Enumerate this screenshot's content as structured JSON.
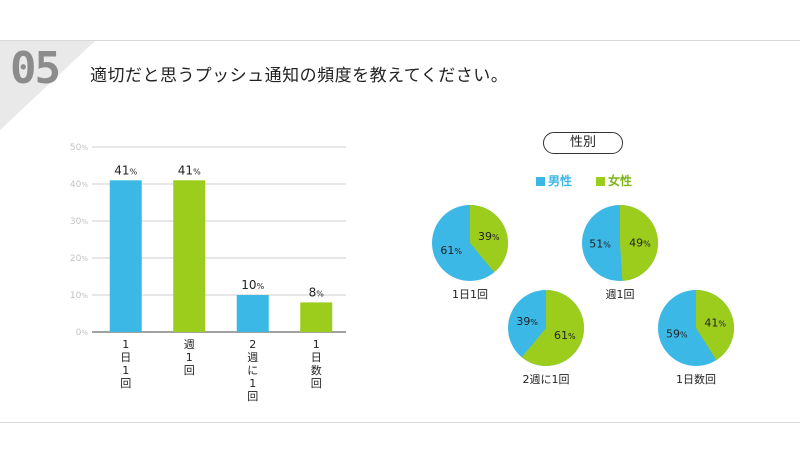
{
  "header": {
    "number": "05",
    "question": "適切だと思うプッシュ通知の頻度を教えてください。"
  },
  "colors": {
    "male": "#3cb8e6",
    "female": "#9ccc1c",
    "male_label_text": "#3cb8e6",
    "female_label_text": "#7fb51a"
  },
  "legend": {
    "title": "性別",
    "male": "男性",
    "female": "女性"
  },
  "chart_data": [
    {
      "type": "bar",
      "categories": [
        "1日1回",
        "週1回",
        "2週に1回",
        "1日数回"
      ],
      "values": [
        41,
        41,
        10,
        8
      ],
      "value_labels": [
        "41%",
        "41%",
        "10%",
        "8%"
      ],
      "bar_colors": [
        "#3cb8e6",
        "#9ccc1c",
        "#3cb8e6",
        "#9ccc1c"
      ],
      "ylim": [
        0,
        50
      ],
      "yticks": [
        0,
        10,
        20,
        30,
        40,
        50
      ],
      "ytick_labels": [
        "0%",
        "10%",
        "20%",
        "30%",
        "40%",
        "50%"
      ],
      "grid": true
    },
    {
      "type": "pie",
      "pies": [
        {
          "title": "1日1回",
          "male": 61,
          "female": 39,
          "male_label": "61%",
          "female_label": "39%"
        },
        {
          "title": "週1回",
          "male": 51,
          "female": 49,
          "male_label": "51%",
          "female_label": "49%"
        },
        {
          "title": "2週に1回",
          "male": 39,
          "female": 61,
          "male_label": "39%",
          "female_label": "61%"
        },
        {
          "title": "1日数回",
          "male": 59,
          "female": 41,
          "male_label": "59%",
          "female_label": "41%"
        }
      ],
      "series": [
        {
          "name": "男性"
        },
        {
          "name": "女性"
        }
      ]
    }
  ]
}
